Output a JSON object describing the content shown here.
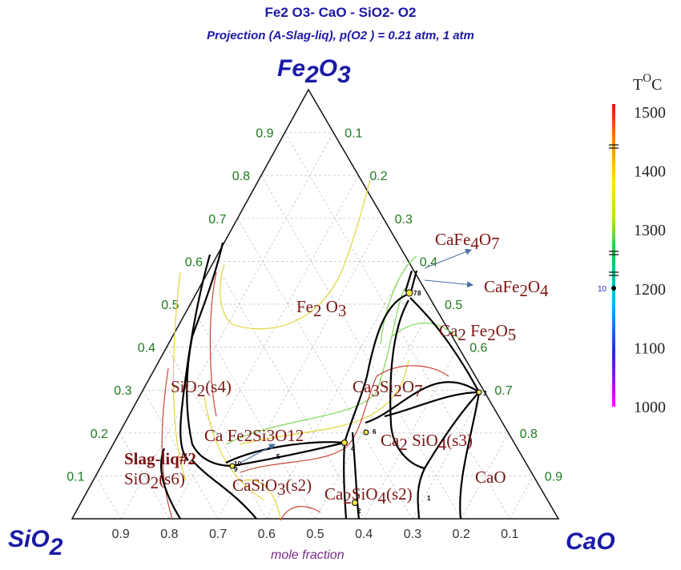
{
  "title": "Fe2 O3- CaO - SiO2- O2",
  "subtitle": "Projection (A-Slag-liq), p(O2  ) = 0.21 atm, 1 atm",
  "chart_data": {
    "type": "ternary phase diagram",
    "vertices": {
      "top": "Fe2O3",
      "left": "SiO2",
      "right": "CaO"
    },
    "axis_ticks": [
      0.1,
      0.2,
      0.3,
      0.4,
      0.5,
      0.6,
      0.7,
      0.8,
      0.9
    ],
    "bottom_tick_labels": [
      "0.9",
      "0.8",
      "0.7",
      "0.6",
      "0.5",
      "0.4",
      "0.3",
      "0.2",
      "0.1"
    ],
    "xlabel": "mole fraction",
    "phase_fields": [
      "Fe2 O3",
      "SiO2(s4)",
      "Ca Fe2Si3O12",
      "Slag-liq#2",
      "SiO2(s6)",
      "CaSiO3(s2)",
      "Ca2SiO4(s2)",
      "Ca3Si2O7",
      "Ca2SiO4(s3)",
      "CaO",
      "Ca2 Fe2O5",
      "CaFe4O7",
      "CaFe2O4"
    ],
    "invariant_points": [
      "1",
      "2",
      "3",
      "4",
      "5",
      "6",
      "7",
      "8",
      "9",
      "10"
    ],
    "colorbar": {
      "title": "T oC",
      "ticks": [
        1500,
        1400,
        1300,
        1200,
        1100,
        1000
      ],
      "range": [
        1000,
        1500
      ],
      "marker_label": "10",
      "colors": [
        "#ff00ff",
        "#2a2acf",
        "#00b8ff",
        "#00c95a",
        "#b4e61e",
        "#ffe600",
        "#ff8a00",
        "#e01010"
      ]
    },
    "isotherm_colors": {
      "1200": "#c8463a",
      "1300": "#e3d43a",
      "1400": "#7ed957"
    }
  }
}
